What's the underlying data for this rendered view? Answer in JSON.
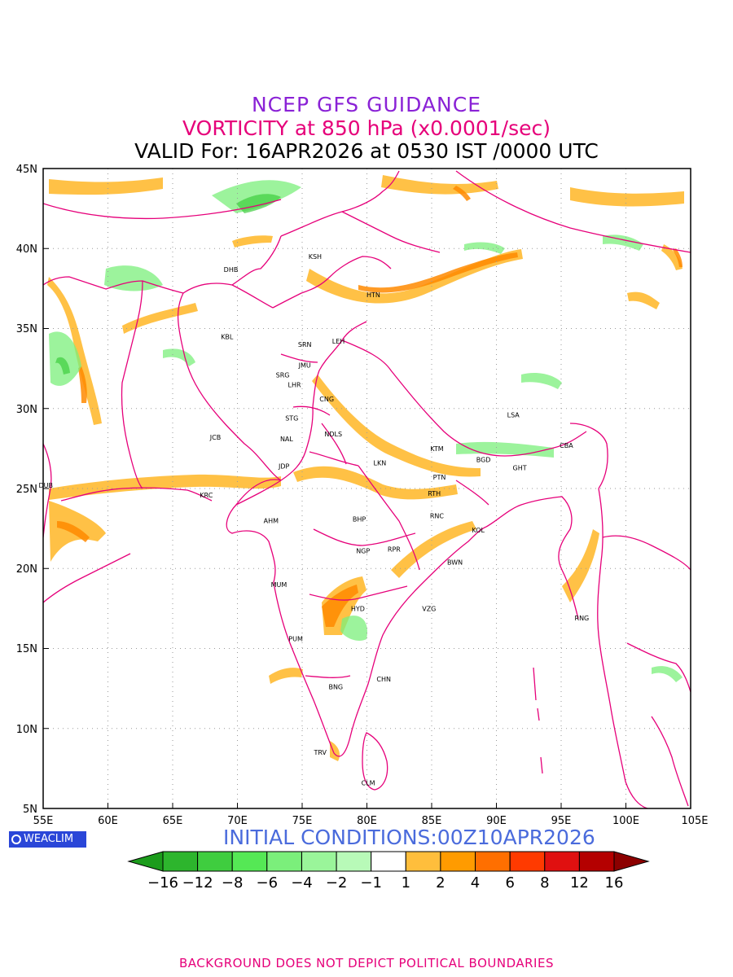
{
  "titles": {
    "line1": "NCEP GFS GUIDANCE",
    "line2": "VORTICITY at 850 hPa (x0.0001/sec)",
    "line3": "VALID For: 16APR2026 at 0530 IST /0000 UTC"
  },
  "axes": {
    "x_labels": [
      "55E",
      "60E",
      "65E",
      "70E",
      "75E",
      "80E",
      "85E",
      "90E",
      "95E",
      "100E",
      "105E"
    ],
    "y_labels": [
      "45N",
      "40N",
      "35N",
      "30N",
      "25N",
      "20N",
      "15N",
      "10N",
      "5N"
    ]
  },
  "cities": [
    {
      "code": "DHB",
      "lon": 69.5,
      "lat": 38.7
    },
    {
      "code": "KSH",
      "lon": 76.0,
      "lat": 39.5
    },
    {
      "code": "HTN",
      "lon": 80.5,
      "lat": 37.1
    },
    {
      "code": "KBL",
      "lon": 69.2,
      "lat": 34.5
    },
    {
      "code": "SRN",
      "lon": 75.2,
      "lat": 34.0
    },
    {
      "code": "LEH",
      "lon": 77.8,
      "lat": 34.2
    },
    {
      "code": "JMU",
      "lon": 75.2,
      "lat": 32.7
    },
    {
      "code": "SRG",
      "lon": 73.5,
      "lat": 32.1
    },
    {
      "code": "LHR",
      "lon": 74.4,
      "lat": 31.5
    },
    {
      "code": "CNG",
      "lon": 76.9,
      "lat": 30.6
    },
    {
      "code": "LSA",
      "lon": 91.3,
      "lat": 29.6
    },
    {
      "code": "STG",
      "lon": 74.2,
      "lat": 29.4
    },
    {
      "code": "JCB",
      "lon": 68.3,
      "lat": 28.2
    },
    {
      "code": "NAL",
      "lon": 73.8,
      "lat": 28.1
    },
    {
      "code": "NDLS",
      "lon": 77.4,
      "lat": 28.4
    },
    {
      "code": "KTM",
      "lon": 85.4,
      "lat": 27.5
    },
    {
      "code": "CBA",
      "lon": 95.4,
      "lat": 27.7
    },
    {
      "code": "BGD",
      "lon": 89.0,
      "lat": 26.8
    },
    {
      "code": "LKN",
      "lon": 81.0,
      "lat": 26.6
    },
    {
      "code": "GHT",
      "lon": 91.8,
      "lat": 26.3
    },
    {
      "code": "JDP",
      "lon": 73.6,
      "lat": 26.4
    },
    {
      "code": "DUB",
      "lon": 55.2,
      "lat": 25.2
    },
    {
      "code": "PTN",
      "lon": 85.6,
      "lat": 25.7
    },
    {
      "code": "KRC",
      "lon": 67.6,
      "lat": 24.6
    },
    {
      "code": "RTH",
      "lon": 85.2,
      "lat": 24.7
    },
    {
      "code": "RNC",
      "lon": 85.4,
      "lat": 23.3
    },
    {
      "code": "AHM",
      "lon": 72.6,
      "lat": 23.0
    },
    {
      "code": "BHP",
      "lon": 79.4,
      "lat": 23.1
    },
    {
      "code": "KOL",
      "lon": 88.6,
      "lat": 22.4
    },
    {
      "code": "NGP",
      "lon": 79.7,
      "lat": 21.1
    },
    {
      "code": "RPR",
      "lon": 82.1,
      "lat": 21.2
    },
    {
      "code": "BWN",
      "lon": 86.8,
      "lat": 20.4
    },
    {
      "code": "MUM",
      "lon": 73.2,
      "lat": 19.0
    },
    {
      "code": "HYD",
      "lon": 79.3,
      "lat": 17.5
    },
    {
      "code": "VZG",
      "lon": 84.8,
      "lat": 17.5
    },
    {
      "code": "RNG",
      "lon": 96.6,
      "lat": 16.9
    },
    {
      "code": "PUM",
      "lon": 74.5,
      "lat": 15.6
    },
    {
      "code": "CHN",
      "lon": 81.3,
      "lat": 13.1
    },
    {
      "code": "BNG",
      "lon": 77.6,
      "lat": 12.6
    },
    {
      "code": "TRV",
      "lon": 76.4,
      "lat": 8.5
    },
    {
      "code": "CLM",
      "lon": 80.1,
      "lat": 6.6
    }
  ],
  "badge": "WEACLIM",
  "initial_conditions": "INITIAL CONDITIONS:00Z10APR2026",
  "colorbar": {
    "labels": [
      "-16",
      "-12",
      "-8",
      "-6",
      "-4",
      "-2",
      "-1",
      "1",
      "2",
      "4",
      "6",
      "8",
      "12",
      "16"
    ],
    "colors": [
      "#1c9c1c",
      "#2db52d",
      "#3fcd3f",
      "#55e855",
      "#7bef7b",
      "#9af59a",
      "#b8fab8",
      "#ffffff",
      "#ffbe3c",
      "#ff9b00",
      "#ff6f00",
      "#ff3a00",
      "#e01010",
      "#b40000",
      "#8c0000"
    ]
  },
  "footer": "BACKGROUND DOES NOT DEPICT POLITICAL BOUNDARIES"
}
